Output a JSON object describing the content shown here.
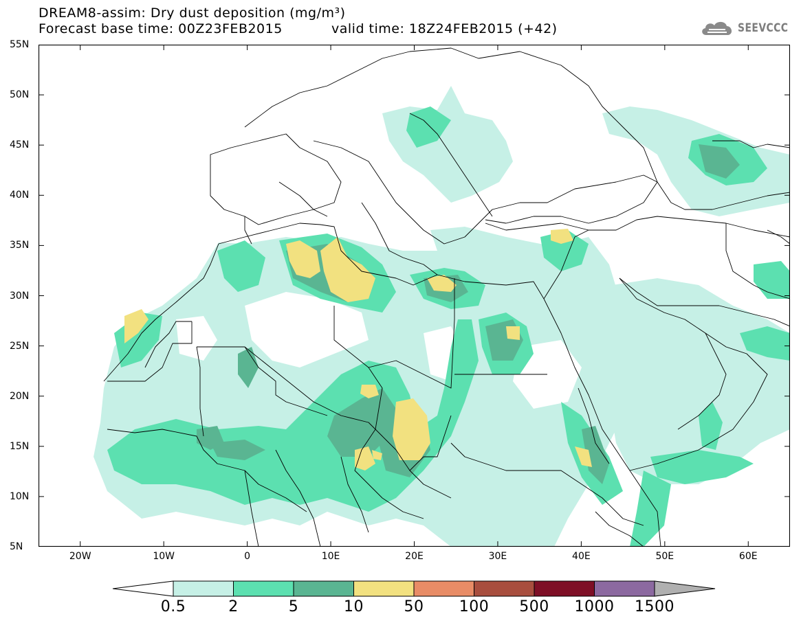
{
  "header": {
    "title": "DREAM8-assim: Dry dust deposition (mg/m³)",
    "base_time": "Forecast base time: 00Z23FEB2015",
    "valid_time": "valid time: 18Z24FEB2015 (+42)"
  },
  "logo": {
    "text": "SEEVCCC",
    "icon": "cloud-icon"
  },
  "map": {
    "lon_range": [
      -25,
      65
    ],
    "lat_range": [
      5,
      55
    ],
    "lat_ticks": [
      {
        "value": 55,
        "label": "55N"
      },
      {
        "value": 50,
        "label": "50N"
      },
      {
        "value": 45,
        "label": "45N"
      },
      {
        "value": 40,
        "label": "40N"
      },
      {
        "value": 35,
        "label": "35N"
      },
      {
        "value": 30,
        "label": "30N"
      },
      {
        "value": 25,
        "label": "25N"
      },
      {
        "value": 20,
        "label": "20N"
      },
      {
        "value": 15,
        "label": "15N"
      },
      {
        "value": 10,
        "label": "10N"
      },
      {
        "value": 5,
        "label": "5N"
      }
    ],
    "lon_ticks": [
      {
        "value": -20,
        "label": "20W"
      },
      {
        "value": -10,
        "label": "10W"
      },
      {
        "value": 0,
        "label": "0"
      },
      {
        "value": 10,
        "label": "10E"
      },
      {
        "value": 20,
        "label": "20E"
      },
      {
        "value": 30,
        "label": "30E"
      },
      {
        "value": 40,
        "label": "40E"
      },
      {
        "value": 50,
        "label": "50E"
      },
      {
        "value": 60,
        "label": "60E"
      }
    ]
  },
  "legend": {
    "colors": [
      "#c6f0e6",
      "#5ce0b0",
      "#5ab592",
      "#f2e180",
      "#e88c66",
      "#a84e3e",
      "#7e0f26",
      "#8c69a0"
    ],
    "under_color": "#ffffff",
    "over_color": "#b0b0b0",
    "labels": [
      "0.5",
      "2",
      "5",
      "10",
      "50",
      "100",
      "500",
      "1000",
      "1500"
    ]
  }
}
